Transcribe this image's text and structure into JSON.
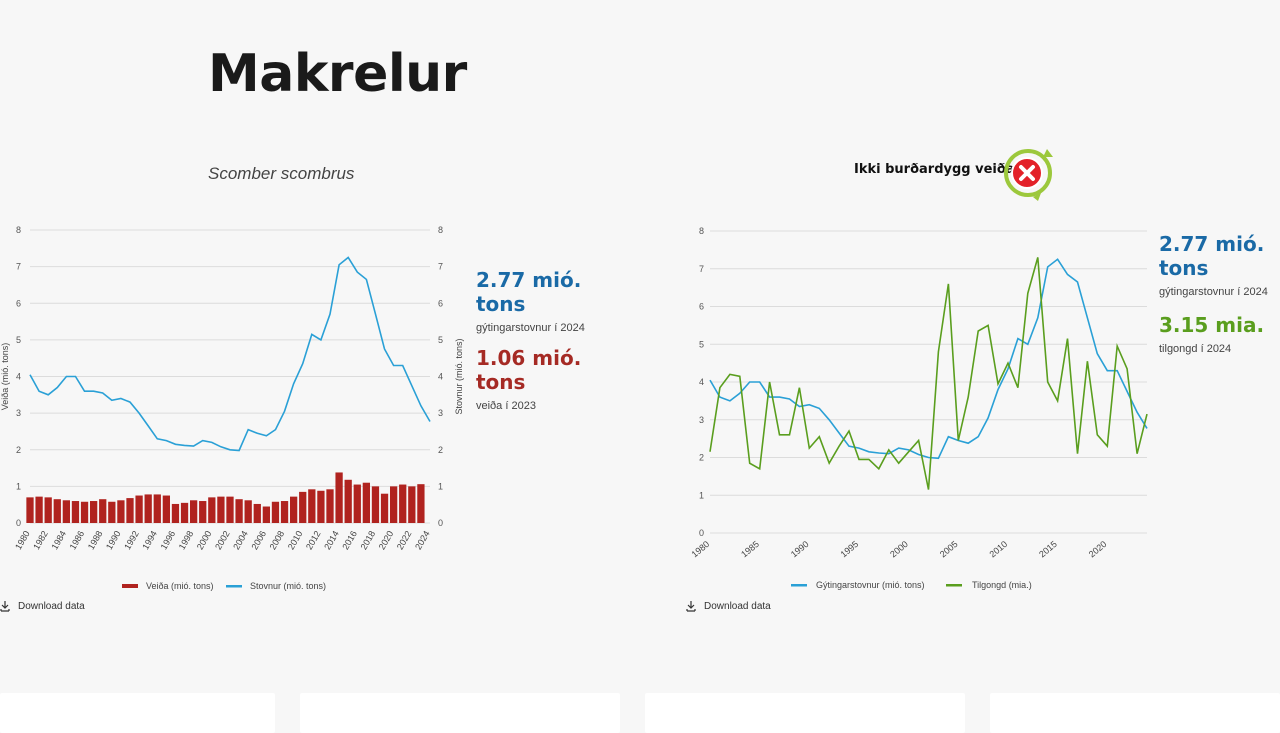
{
  "title": "Makrelur",
  "subtitle": "Scomber scombrus",
  "status": {
    "label": "Ikki burðardygg veiða",
    "icon": "not-sustainable-icon"
  },
  "left_stats": [
    {
      "value": "2.77 mió. tons",
      "label": "gýtingarstovnur í 2024",
      "color": "#1a6aa6"
    },
    {
      "value": "1.06 mió. tons",
      "label": "veiða í 2023",
      "color": "#a52a24"
    }
  ],
  "right_stats": [
    {
      "value": "2.77 mió. tons",
      "label": "gýtingarstovnur í 2024",
      "color": "#1a6aa6"
    },
    {
      "value": "3.15 mia.",
      "label": "tilgongd í 2024",
      "color": "#5a9e1e"
    }
  ],
  "download_label": "Download data",
  "colors": {
    "blue": "#2aa0d6",
    "red": "#b0231f",
    "green": "#5a9e1e"
  },
  "chart_data": [
    {
      "type": "bar+line",
      "title": "",
      "ylabel_left": "Veiða (mió. tons)",
      "ylabel_right": "Stovnur (mió. tons)",
      "ylim_left": [
        0,
        8
      ],
      "ylim_right": [
        0,
        8
      ],
      "yticks": [
        0,
        1,
        2,
        3,
        4,
        5,
        6,
        7,
        8
      ],
      "x": [
        1980,
        1981,
        1982,
        1983,
        1984,
        1985,
        1986,
        1987,
        1988,
        1989,
        1990,
        1991,
        1992,
        1993,
        1994,
        1995,
        1996,
        1997,
        1998,
        1999,
        2000,
        2001,
        2002,
        2003,
        2004,
        2005,
        2006,
        2007,
        2008,
        2009,
        2010,
        2011,
        2012,
        2013,
        2014,
        2015,
        2016,
        2017,
        2018,
        2019,
        2020,
        2021,
        2022,
        2023,
        2024
      ],
      "xtick_labels": [
        "1980",
        "1982",
        "1984",
        "1986",
        "1988",
        "1990",
        "1992",
        "1994",
        "1996",
        "1998",
        "2000",
        "2002",
        "2004",
        "2006",
        "2008",
        "2010",
        "2012",
        "2014",
        "2016",
        "2018",
        "2020",
        "2022",
        "2024"
      ],
      "series": [
        {
          "name": "Veiða (mió. tons)",
          "kind": "bar",
          "color": "#b0231f",
          "values": [
            0.7,
            0.72,
            0.7,
            0.65,
            0.62,
            0.6,
            0.58,
            0.6,
            0.65,
            0.58,
            0.62,
            0.68,
            0.75,
            0.78,
            0.78,
            0.75,
            0.52,
            0.55,
            0.62,
            0.6,
            0.7,
            0.72,
            0.72,
            0.65,
            0.62,
            0.52,
            0.45,
            0.58,
            0.6,
            0.72,
            0.85,
            0.92,
            0.88,
            0.92,
            1.38,
            1.18,
            1.05,
            1.1,
            1.0,
            0.8,
            1.0,
            1.05,
            1.0,
            1.06,
            null
          ]
        },
        {
          "name": "Stovnur (mió. tons)",
          "kind": "line",
          "color": "#2aa0d6",
          "values": [
            4.05,
            3.6,
            3.5,
            3.7,
            4.0,
            4.0,
            3.6,
            3.6,
            3.55,
            3.35,
            3.4,
            3.3,
            3.0,
            2.65,
            2.3,
            2.25,
            2.15,
            2.12,
            2.1,
            2.25,
            2.2,
            2.08,
            2.0,
            1.98,
            2.55,
            2.45,
            2.38,
            2.55,
            3.05,
            3.8,
            4.35,
            5.15,
            5.0,
            5.7,
            7.05,
            7.25,
            6.85,
            6.65,
            5.7,
            4.75,
            4.3,
            4.3,
            3.75,
            3.2,
            2.77
          ]
        }
      ],
      "legend": "bottom"
    },
    {
      "type": "line",
      "title": "",
      "ylim": [
        0,
        8
      ],
      "yticks": [
        0,
        1,
        2,
        3,
        4,
        5,
        6,
        7,
        8
      ],
      "x": [
        1980,
        1981,
        1982,
        1983,
        1984,
        1985,
        1986,
        1987,
        1988,
        1989,
        1990,
        1991,
        1992,
        1993,
        1994,
        1995,
        1996,
        1997,
        1998,
        1999,
        2000,
        2001,
        2002,
        2003,
        2004,
        2005,
        2006,
        2007,
        2008,
        2009,
        2010,
        2011,
        2012,
        2013,
        2014,
        2015,
        2016,
        2017,
        2018,
        2019,
        2020,
        2021,
        2022,
        2023,
        2024
      ],
      "xtick_labels": [
        "1980",
        "1985",
        "1990",
        "1995",
        "2000",
        "2005",
        "2010",
        "2015",
        "2020"
      ],
      "series": [
        {
          "name": "Gýtingarstovnur (mió. tons)",
          "color": "#2aa0d6",
          "values": [
            4.05,
            3.6,
            3.5,
            3.7,
            4.0,
            4.0,
            3.6,
            3.6,
            3.55,
            3.35,
            3.4,
            3.3,
            3.0,
            2.65,
            2.3,
            2.25,
            2.15,
            2.12,
            2.1,
            2.25,
            2.2,
            2.08,
            2.0,
            1.98,
            2.55,
            2.45,
            2.38,
            2.55,
            3.05,
            3.8,
            4.35,
            5.15,
            5.0,
            5.7,
            7.05,
            7.25,
            6.85,
            6.65,
            5.7,
            4.75,
            4.3,
            4.3,
            3.75,
            3.2,
            2.77
          ]
        },
        {
          "name": "Tilgongd (mia.)",
          "color": "#5a9e1e",
          "values": [
            2.15,
            3.85,
            4.2,
            4.15,
            1.85,
            1.7,
            4.0,
            2.6,
            2.6,
            3.85,
            2.25,
            2.55,
            1.85,
            2.3,
            2.7,
            1.95,
            1.95,
            1.7,
            2.2,
            1.85,
            2.15,
            2.45,
            1.15,
            4.8,
            6.6,
            2.45,
            3.6,
            5.35,
            5.5,
            3.95,
            4.5,
            3.85,
            6.35,
            7.3,
            4.0,
            3.5,
            5.15,
            2.1,
            4.55,
            2.6,
            2.3,
            4.95,
            4.35,
            2.1,
            3.15
          ]
        }
      ],
      "legend": "bottom"
    }
  ]
}
